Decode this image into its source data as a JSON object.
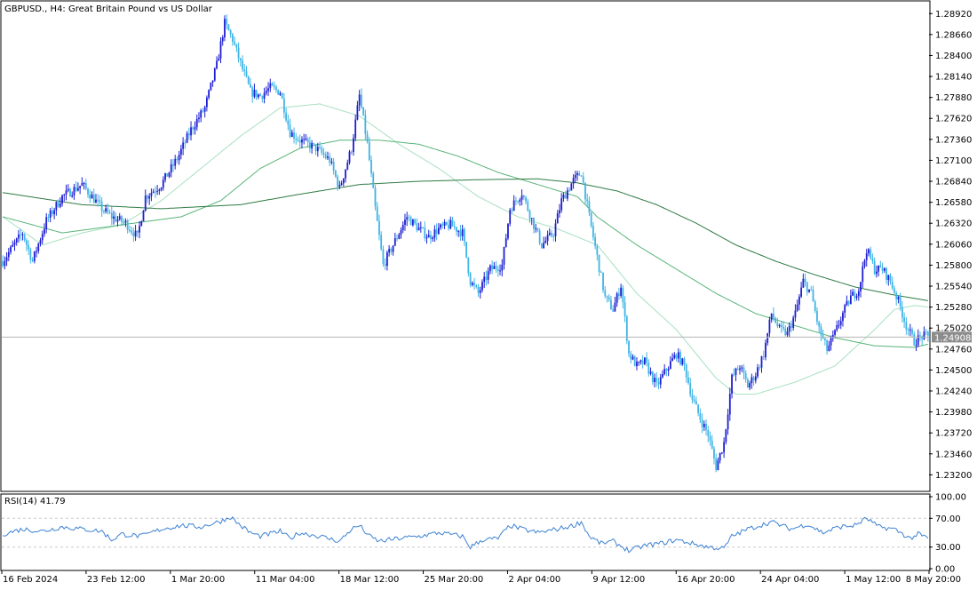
{
  "header": {
    "title": "GBPUSD., H4:  Great Britain Pound vs US Dollar"
  },
  "colors": {
    "background": "#ffffff",
    "axis": "#000000",
    "bull_candle": "#1e1ed2",
    "bear_candle": "#3fb4e6",
    "ma_fast": "#a8e0c0",
    "ma_mid": "#58b478",
    "ma_slow": "#2e7a44",
    "rsi_line": "#3c82d2",
    "bid_line": "#b4b4b4",
    "price_tag_bg": "#8c8c8c",
    "level_line": "#c8c8c8"
  },
  "chart_data": [
    {
      "type": "candlestick",
      "title": "GBPUSD., H4:  Great Britain Pound vs US Dollar",
      "ylim": [
        1.2305,
        1.29
      ],
      "y_tick_labels": [
        "1.28920",
        "1.28660",
        "1.28400",
        "1.28140",
        "1.27880",
        "1.27620",
        "1.27360",
        "1.27100",
        "1.26840",
        "1.26580",
        "1.26320",
        "1.26060",
        "1.25800",
        "1.25540",
        "1.25280",
        "1.25020",
        "1.24760",
        "1.24500",
        "1.24240",
        "1.23980",
        "1.23720",
        "1.23460",
        "1.23200"
      ],
      "y_ticks": [
        1.2892,
        1.2866,
        1.284,
        1.2814,
        1.2788,
        1.2762,
        1.2736,
        1.271,
        1.2684,
        1.2658,
        1.2632,
        1.2606,
        1.258,
        1.2554,
        1.2528,
        1.2502,
        1.2476,
        1.245,
        1.2424,
        1.2398,
        1.2372,
        1.2346,
        1.232
      ],
      "x_labels": [
        "16 Feb 2024",
        "23 Feb 12:00",
        "1 Mar 20:00",
        "11 Mar 04:00",
        "18 Mar 12:00",
        "25 Mar 20:00",
        "2 Apr 04:00",
        "9 Apr 12:00",
        "16 Apr 20:00",
        "24 Apr 04:00",
        "1 May 12:00",
        "8 May 20:00"
      ],
      "current_price": "1.24908",
      "current_value": 1.24908,
      "anchors": [
        [
          0,
          1.2585
        ],
        [
          10,
          1.262
        ],
        [
          15,
          1.2585
        ],
        [
          22,
          1.2635
        ],
        [
          30,
          1.2665
        ],
        [
          40,
          1.268
        ],
        [
          50,
          1.265
        ],
        [
          55,
          1.264
        ],
        [
          62,
          1.2632
        ],
        [
          68,
          1.2615
        ],
        [
          72,
          1.2665
        ],
        [
          80,
          1.268
        ],
        [
          88,
          1.2712
        ],
        [
          95,
          1.2748
        ],
        [
          102,
          1.2775
        ],
        [
          108,
          1.2828
        ],
        [
          112,
          1.288
        ],
        [
          116,
          1.286
        ],
        [
          120,
          1.283
        ],
        [
          125,
          1.2795
        ],
        [
          130,
          1.279
        ],
        [
          135,
          1.28
        ],
        [
          140,
          1.2795
        ],
        [
          145,
          1.2745
        ],
        [
          150,
          1.2735
        ],
        [
          158,
          1.2725
        ],
        [
          165,
          1.271
        ],
        [
          170,
          1.2675
        ],
        [
          176,
          1.2725
        ],
        [
          180,
          1.279
        ],
        [
          184,
          1.273
        ],
        [
          188,
          1.265
        ],
        [
          192,
          1.258
        ],
        [
          198,
          1.261
        ],
        [
          204,
          1.264
        ],
        [
          210,
          1.2625
        ],
        [
          215,
          1.2615
        ],
        [
          220,
          1.2625
        ],
        [
          226,
          1.263
        ],
        [
          232,
          1.262
        ],
        [
          236,
          1.256
        ],
        [
          240,
          1.2545
        ],
        [
          246,
          1.2575
        ],
        [
          252,
          1.258
        ],
        [
          256,
          1.265
        ],
        [
          262,
          1.267
        ],
        [
          268,
          1.263
        ],
        [
          272,
          1.2605
        ],
        [
          278,
          1.262
        ],
        [
          282,
          1.266
        ],
        [
          288,
          1.2685
        ],
        [
          292,
          1.2695
        ],
        [
          296,
          1.264
        ],
        [
          300,
          1.259
        ],
        [
          304,
          1.254
        ],
        [
          308,
          1.2525
        ],
        [
          312,
          1.2555
        ],
        [
          316,
          1.247
        ],
        [
          320,
          1.2455
        ],
        [
          324,
          1.246
        ],
        [
          330,
          1.243
        ],
        [
          336,
          1.2455
        ],
        [
          340,
          1.247
        ],
        [
          344,
          1.2455
        ],
        [
          348,
          1.2415
        ],
        [
          352,
          1.239
        ],
        [
          356,
          1.237
        ],
        [
          360,
          1.233
        ],
        [
          364,
          1.236
        ],
        [
          368,
          1.244
        ],
        [
          372,
          1.2455
        ],
        [
          376,
          1.243
        ],
        [
          380,
          1.2445
        ],
        [
          384,
          1.247
        ],
        [
          388,
          1.252
        ],
        [
          392,
          1.25
        ],
        [
          396,
          1.2495
        ],
        [
          400,
          1.252
        ],
        [
          404,
          1.256
        ],
        [
          408,
          1.2545
        ],
        [
          412,
          1.25
        ],
        [
          416,
          1.2475
        ],
        [
          420,
          1.2495
        ],
        [
          424,
          1.252
        ],
        [
          428,
          1.254
        ],
        [
          432,
          1.255
        ],
        [
          436,
          1.26
        ],
        [
          440,
          1.2575
        ],
        [
          444,
          1.2575
        ],
        [
          448,
          1.256
        ],
        [
          452,
          1.2535
        ],
        [
          456,
          1.2505
        ],
        [
          460,
          1.2485
        ],
        [
          464,
          1.2492
        ],
        [
          467,
          1.2491
        ]
      ],
      "moving_averages": [
        {
          "period_hint": "fast",
          "points": [
            [
              0,
              1.264
            ],
            [
              20,
              1.2605
            ],
            [
              40,
              1.262
            ],
            [
              60,
              1.263
            ],
            [
              80,
              1.266
            ],
            [
              100,
              1.27
            ],
            [
              120,
              1.274
            ],
            [
              140,
              1.2775
            ],
            [
              160,
              1.278
            ],
            [
              180,
              1.2765
            ],
            [
              200,
              1.273
            ],
            [
              220,
              1.27
            ],
            [
              240,
              1.2665
            ],
            [
              260,
              1.264
            ],
            [
              280,
              1.2625
            ],
            [
              300,
              1.2605
            ],
            [
              310,
              1.2575
            ],
            [
              320,
              1.2545
            ],
            [
              340,
              1.25
            ],
            [
              360,
              1.244
            ],
            [
              370,
              1.242
            ],
            [
              380,
              1.242
            ],
            [
              400,
              1.2435
            ],
            [
              420,
              1.2455
            ],
            [
              440,
              1.25
            ],
            [
              450,
              1.2525
            ],
            [
              460,
              1.253
            ],
            [
              467,
              1.2528
            ]
          ]
        },
        {
          "period_hint": "mid",
          "points": [
            [
              0,
              1.264
            ],
            [
              30,
              1.262
            ],
            [
              60,
              1.263
            ],
            [
              90,
              1.264
            ],
            [
              110,
              1.266
            ],
            [
              130,
              1.27
            ],
            [
              150,
              1.2725
            ],
            [
              170,
              1.2735
            ],
            [
              190,
              1.2735
            ],
            [
              210,
              1.273
            ],
            [
              230,
              1.2715
            ],
            [
              250,
              1.2695
            ],
            [
              270,
              1.268
            ],
            [
              290,
              1.2665
            ],
            [
              300,
              1.264
            ],
            [
              320,
              1.2605
            ],
            [
              340,
              1.2575
            ],
            [
              360,
              1.2545
            ],
            [
              380,
              1.252
            ],
            [
              400,
              1.2505
            ],
            [
              420,
              1.249
            ],
            [
              440,
              1.248
            ],
            [
              460,
              1.2478
            ],
            [
              467,
              1.2482
            ]
          ]
        },
        {
          "period_hint": "slow",
          "points": [
            [
              0,
              1.267
            ],
            [
              40,
              1.2655
            ],
            [
              80,
              1.265
            ],
            [
              120,
              1.2655
            ],
            [
              150,
              1.2668
            ],
            [
              180,
              1.268
            ],
            [
              210,
              1.2684
            ],
            [
              240,
              1.2686
            ],
            [
              270,
              1.2687
            ],
            [
              290,
              1.2682
            ],
            [
              310,
              1.2672
            ],
            [
              330,
              1.2655
            ],
            [
              350,
              1.2632
            ],
            [
              370,
              1.2605
            ],
            [
              390,
              1.2585
            ],
            [
              410,
              1.2568
            ],
            [
              430,
              1.2553
            ],
            [
              450,
              1.2543
            ],
            [
              467,
              1.2536
            ]
          ]
        }
      ]
    },
    {
      "type": "line",
      "title": "RSI(14) 41.79",
      "ylim": [
        0,
        100
      ],
      "y_ticks": [
        100,
        70,
        30,
        0
      ],
      "y_tick_labels": [
        "100.00",
        "70.00",
        "30.00",
        "0.00"
      ],
      "levels": [
        70,
        30
      ],
      "series": [
        {
          "name": "RSI(14)",
          "anchors": [
            [
              0,
              48
            ],
            [
              10,
              55
            ],
            [
              20,
              52
            ],
            [
              30,
              58
            ],
            [
              40,
              55
            ],
            [
              50,
              52
            ],
            [
              55,
              40
            ],
            [
              60,
              48
            ],
            [
              70,
              45
            ],
            [
              80,
              55
            ],
            [
              90,
              60
            ],
            [
              100,
              58
            ],
            [
              110,
              66
            ],
            [
              115,
              72
            ],
            [
              120,
              60
            ],
            [
              125,
              50
            ],
            [
              130,
              45
            ],
            [
              140,
              52
            ],
            [
              145,
              42
            ],
            [
              150,
              50
            ],
            [
              160,
              45
            ],
            [
              170,
              38
            ],
            [
              176,
              55
            ],
            [
              180,
              60
            ],
            [
              185,
              45
            ],
            [
              190,
              38
            ],
            [
              200,
              42
            ],
            [
              210,
              45
            ],
            [
              220,
              50
            ],
            [
              232,
              45
            ],
            [
              236,
              30
            ],
            [
              242,
              40
            ],
            [
              250,
              42
            ],
            [
              256,
              60
            ],
            [
              262,
              55
            ],
            [
              270,
              50
            ],
            [
              280,
              55
            ],
            [
              288,
              60
            ],
            [
              292,
              65
            ],
            [
              296,
              45
            ],
            [
              302,
              35
            ],
            [
              308,
              38
            ],
            [
              316,
              25
            ],
            [
              324,
              32
            ],
            [
              332,
              35
            ],
            [
              340,
              40
            ],
            [
              348,
              35
            ],
            [
              356,
              30
            ],
            [
              364,
              28
            ],
            [
              368,
              45
            ],
            [
              376,
              55
            ],
            [
              388,
              65
            ],
            [
              398,
              55
            ],
            [
              406,
              62
            ],
            [
              414,
              50
            ],
            [
              422,
              58
            ],
            [
              430,
              60
            ],
            [
              436,
              70
            ],
            [
              442,
              58
            ],
            [
              450,
              55
            ],
            [
              458,
              42
            ],
            [
              462,
              48
            ],
            [
              467,
              42
            ]
          ]
        }
      ]
    }
  ]
}
